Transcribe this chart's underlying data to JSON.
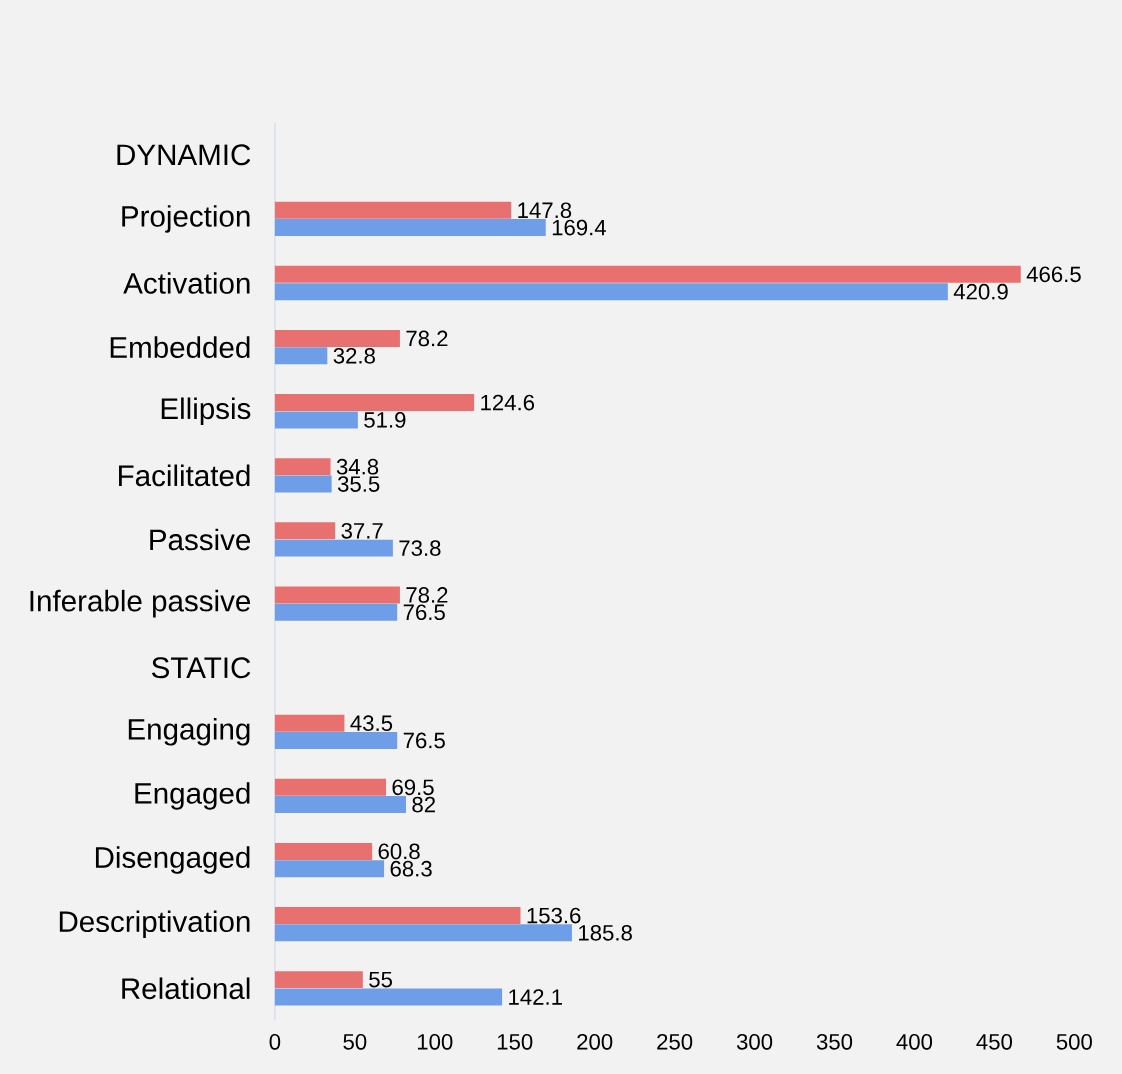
{
  "chart_data": {
    "type": "bar",
    "orientation": "horizontal",
    "data_labels": true,
    "categories": [
      "DYNAMIC",
      "Projection",
      "Activation",
      "Embedded",
      "Ellipsis",
      "Facilitated",
      "Passive",
      "Inferable passive",
      "STATIC",
      "Engaging",
      "Engaged",
      "Disengaged",
      "Descriptivation",
      "Relational"
    ],
    "series": [
      {
        "color": "#e8706e",
        "values": [
          null,
          147.8,
          466.5,
          78.2,
          124.6,
          34.8,
          37.7,
          78.2,
          null,
          43.5,
          69.5,
          60.8,
          153.6,
          55
        ]
      },
      {
        "color": "#6f9ee8",
        "values": [
          null,
          169.4,
          420.9,
          32.8,
          51.9,
          35.5,
          73.8,
          76.5,
          null,
          76.5,
          82,
          68.3,
          185.8,
          142.1
        ]
      }
    ],
    "xlim": [
      0,
      500
    ],
    "xticks": [
      0,
      50,
      100,
      150,
      200,
      250,
      300,
      350,
      400,
      450,
      500
    ]
  }
}
